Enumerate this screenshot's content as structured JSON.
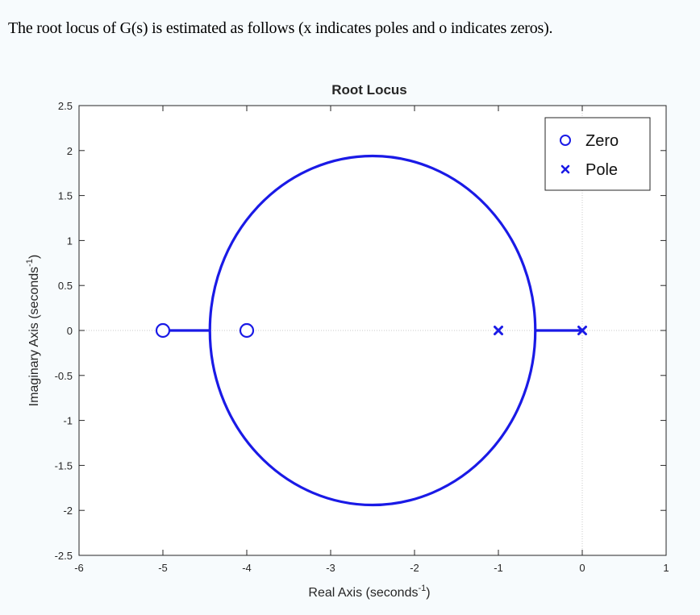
{
  "intro_text": "The root locus of G(s) is estimated as follows (x indicates poles and o indicates zeros).",
  "colors": {
    "background": "#f7fbfd",
    "locus": "#1a1ae6",
    "axes": "#262626"
  },
  "chart_data": {
    "type": "scatter",
    "title": "Root Locus",
    "xlabel": "Real Axis (seconds",
    "xlabel_sup": "-1",
    "xlabel_tail": ")",
    "ylabel": "Imaginary Axis (seconds",
    "ylabel_sup": "-1",
    "ylabel_tail": ")",
    "xlim": [
      -6,
      1
    ],
    "ylim": [
      -2.5,
      2.5
    ],
    "xticks": [
      -6,
      -5,
      -4,
      -3,
      -2,
      -1,
      0,
      1
    ],
    "xtick_labels": [
      "-6",
      "-5",
      "-4",
      "-3",
      "-2",
      "-1",
      "0",
      "1"
    ],
    "yticks": [
      -2.5,
      -2,
      -1.5,
      -1,
      -0.5,
      0,
      0.5,
      1,
      1.5,
      2,
      2.5
    ],
    "ytick_labels": [
      "-2.5",
      "-2",
      "-1.5",
      "-1",
      "-0.5",
      "0",
      "0.5",
      "1",
      "1.5",
      "2",
      "2.5"
    ],
    "grid": "dotted lines at x=0 and y=0",
    "legend_position": "top-right",
    "legend": [
      {
        "label": "Zero",
        "marker": "circle"
      },
      {
        "label": "Pole",
        "marker": "x"
      }
    ],
    "zeros": [
      {
        "x": -5,
        "y": 0
      },
      {
        "x": -4,
        "y": 0
      }
    ],
    "poles": [
      {
        "x": -1,
        "y": 0
      },
      {
        "x": 0,
        "y": 0
      }
    ],
    "real_axis_segments": [
      [
        -5,
        -4.44
      ],
      [
        -0.56,
        0
      ]
    ],
    "breakpoints": [
      -4.44,
      -0.56
    ],
    "locus_circle": {
      "center_x": -2.5,
      "center_y": 0,
      "radius": 1.94
    }
  }
}
